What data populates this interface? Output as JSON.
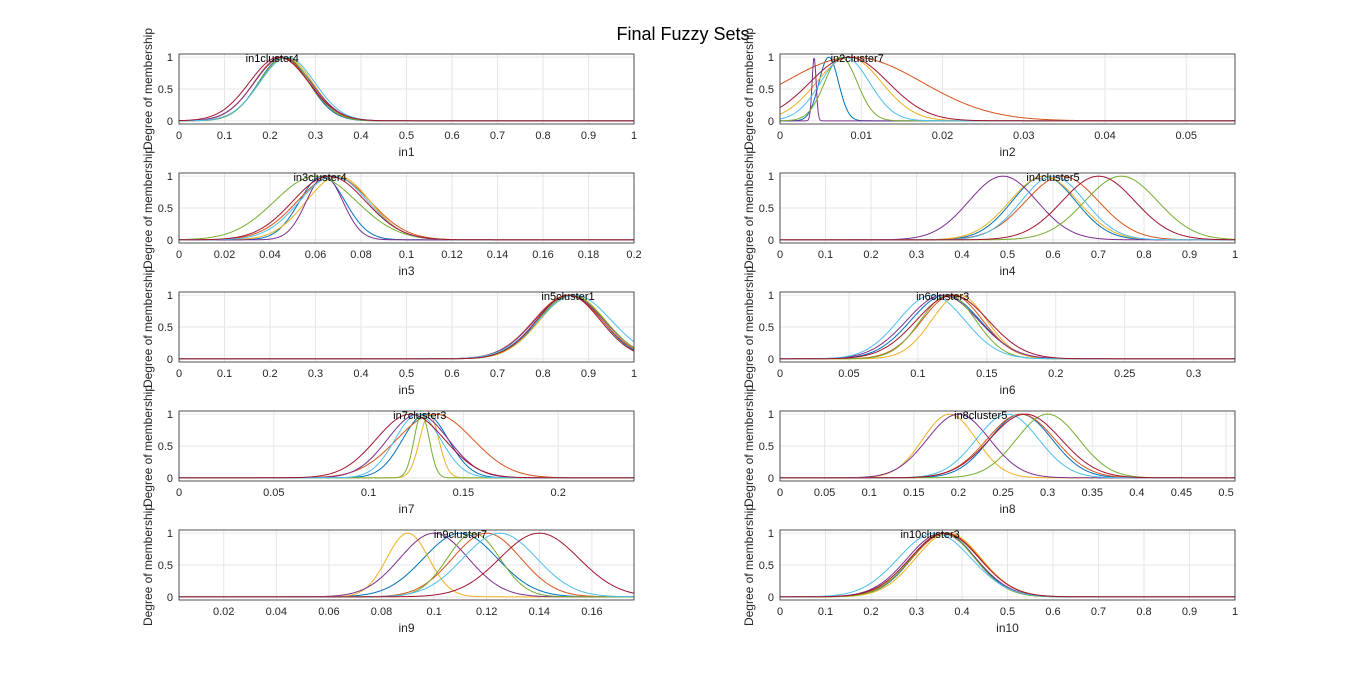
{
  "figure": {
    "title": "Final Fuzzy Sets"
  },
  "chart_data": [
    {
      "type": "line",
      "xlabel": "in1",
      "ylabel": "Degree of membership",
      "xlim": [
        0,
        1
      ],
      "ylim": [
        -0.05,
        1.05
      ],
      "xticks": [
        "0",
        "0.1",
        "0.2",
        "0.3",
        "0.4",
        "0.5",
        "0.6",
        "0.7",
        "0.8",
        "0.9",
        "1"
      ],
      "yticks": [
        "0",
        "0.5",
        "1"
      ],
      "grid": true,
      "label_text": "in1cluster4",
      "label_x": 0.205,
      "series": [
        {
          "c": 0.23,
          "s": 0.055,
          "color": "#0072BD"
        },
        {
          "c": 0.225,
          "s": 0.06,
          "color": "#D95319"
        },
        {
          "c": 0.235,
          "s": 0.058,
          "color": "#EDB120"
        },
        {
          "c": 0.228,
          "s": 0.062,
          "color": "#7E2F8E"
        },
        {
          "c": 0.232,
          "s": 0.056,
          "color": "#77AC30"
        },
        {
          "c": 0.238,
          "s": 0.06,
          "color": "#4DBEEE"
        },
        {
          "c": 0.22,
          "s": 0.065,
          "color": "#A2142F"
        }
      ]
    },
    {
      "type": "line",
      "xlabel": "in2",
      "ylabel": "Degree of membership",
      "xlim": [
        0,
        0.056
      ],
      "ylim": [
        -0.05,
        1.05
      ],
      "xticks": [
        "0",
        "0.01",
        "0.02",
        "0.03",
        "0.04",
        "0.05"
      ],
      "yticks": [
        "0",
        "0.5",
        "1"
      ],
      "grid": true,
      "label_text": "in2cluster7",
      "label_x": 0.0095,
      "series": [
        {
          "c": 0.006,
          "s": 0.0012,
          "color": "#0072BD"
        },
        {
          "c": 0.009,
          "s": 0.0085,
          "color": "#D95319"
        },
        {
          "c": 0.0085,
          "s": 0.004,
          "color": "#EDB120"
        },
        {
          "c": 0.0042,
          "s": 0.00025,
          "color": "#7E2F8E"
        },
        {
          "c": 0.0075,
          "s": 0.002,
          "color": "#77AC30"
        },
        {
          "c": 0.008,
          "s": 0.003,
          "color": "#4DBEEE"
        },
        {
          "c": 0.0085,
          "s": 0.0048,
          "color": "#A2142F"
        }
      ]
    },
    {
      "type": "line",
      "xlabel": "in3",
      "ylabel": "Degree of membership",
      "xlim": [
        0,
        0.2
      ],
      "ylim": [
        -0.05,
        1.05
      ],
      "xticks": [
        "0",
        "0.02",
        "0.04",
        "0.06",
        "0.08",
        "0.1",
        "0.12",
        "0.14",
        "0.16",
        "0.18",
        "0.2"
      ],
      "yticks": [
        "0",
        "0.5",
        "1"
      ],
      "grid": true,
      "label_text": "in3cluster4",
      "label_x": 0.062,
      "series": [
        {
          "c": 0.063,
          "s": 0.01,
          "color": "#0072BD"
        },
        {
          "c": 0.068,
          "s": 0.016,
          "color": "#D95319"
        },
        {
          "c": 0.07,
          "s": 0.014,
          "color": "#EDB120"
        },
        {
          "c": 0.064,
          "s": 0.008,
          "color": "#7E2F8E"
        },
        {
          "c": 0.06,
          "s": 0.018,
          "color": "#77AC30"
        },
        {
          "c": 0.068,
          "s": 0.015,
          "color": "#4DBEEE"
        },
        {
          "c": 0.066,
          "s": 0.016,
          "color": "#A2142F"
        }
      ]
    },
    {
      "type": "line",
      "xlabel": "in4",
      "ylabel": "Degree of membership",
      "xlim": [
        0,
        1
      ],
      "ylim": [
        -0.05,
        1.05
      ],
      "xticks": [
        "0",
        "0.1",
        "0.2",
        "0.3",
        "0.4",
        "0.5",
        "0.6",
        "0.7",
        "0.8",
        "0.9",
        "1"
      ],
      "yticks": [
        "0",
        "0.5",
        "1"
      ],
      "grid": true,
      "label_text": "in4cluster5",
      "label_x": 0.6,
      "series": [
        {
          "c": 0.58,
          "s": 0.07,
          "color": "#0072BD"
        },
        {
          "c": 0.62,
          "s": 0.08,
          "color": "#D95319"
        },
        {
          "c": 0.58,
          "s": 0.075,
          "color": "#EDB120"
        },
        {
          "c": 0.49,
          "s": 0.075,
          "color": "#7E2F8E"
        },
        {
          "c": 0.75,
          "s": 0.08,
          "color": "#77AC30"
        },
        {
          "c": 0.6,
          "s": 0.07,
          "color": "#4DBEEE"
        },
        {
          "c": 0.7,
          "s": 0.08,
          "color": "#A2142F"
        }
      ]
    },
    {
      "type": "line",
      "xlabel": "in5",
      "ylabel": "Degree of membership",
      "xlim": [
        0,
        1
      ],
      "ylim": [
        -0.05,
        1.05
      ],
      "xticks": [
        "0",
        "0.1",
        "0.2",
        "0.3",
        "0.4",
        "0.5",
        "0.6",
        "0.7",
        "0.8",
        "0.9",
        "1"
      ],
      "yticks": [
        "0",
        "0.5",
        "1"
      ],
      "grid": true,
      "label_text": "in5cluster1",
      "label_x": 0.855,
      "series": [
        {
          "c": 0.86,
          "s": 0.07,
          "color": "#0072BD"
        },
        {
          "c": 0.855,
          "s": 0.075,
          "color": "#D95319"
        },
        {
          "c": 0.865,
          "s": 0.072,
          "color": "#EDB120"
        },
        {
          "c": 0.858,
          "s": 0.076,
          "color": "#7E2F8E"
        },
        {
          "c": 0.862,
          "s": 0.074,
          "color": "#77AC30"
        },
        {
          "c": 0.87,
          "s": 0.08,
          "color": "#4DBEEE"
        },
        {
          "c": 0.856,
          "s": 0.07,
          "color": "#A2142F"
        }
      ]
    },
    {
      "type": "line",
      "xlabel": "in6",
      "ylabel": "Degree of membership",
      "xlim": [
        0,
        0.33
      ],
      "ylim": [
        -0.05,
        1.05
      ],
      "xticks": [
        "0",
        "0.05",
        "0.1",
        "0.15",
        "0.2",
        "0.25",
        "0.3"
      ],
      "yticks": [
        "0",
        "0.5",
        "1"
      ],
      "grid": true,
      "label_text": "in6cluster3",
      "label_x": 0.118,
      "series": [
        {
          "c": 0.12,
          "s": 0.025,
          "color": "#0072BD"
        },
        {
          "c": 0.125,
          "s": 0.022,
          "color": "#D95319"
        },
        {
          "c": 0.13,
          "s": 0.02,
          "color": "#EDB120"
        },
        {
          "c": 0.118,
          "s": 0.026,
          "color": "#7E2F8E"
        },
        {
          "c": 0.122,
          "s": 0.02,
          "color": "#77AC30"
        },
        {
          "c": 0.11,
          "s": 0.024,
          "color": "#4DBEEE"
        },
        {
          "c": 0.125,
          "s": 0.026,
          "color": "#A2142F"
        }
      ]
    },
    {
      "type": "line",
      "xlabel": "in7",
      "ylabel": "Degree of membership",
      "xlim": [
        0,
        0.24
      ],
      "ylim": [
        -0.05,
        1.05
      ],
      "xticks": [
        "0",
        "0.05",
        "0.1",
        "0.15",
        "0.2"
      ],
      "yticks": [
        "0",
        "0.5",
        "1"
      ],
      "grid": true,
      "label_text": "in7cluster3",
      "label_x": 0.127,
      "series": [
        {
          "c": 0.13,
          "s": 0.012,
          "color": "#0072BD"
        },
        {
          "c": 0.135,
          "s": 0.02,
          "color": "#D95319"
        },
        {
          "c": 0.132,
          "s": 0.005,
          "color": "#EDB120"
        },
        {
          "c": 0.126,
          "s": 0.016,
          "color": "#7E2F8E"
        },
        {
          "c": 0.128,
          "s": 0.004,
          "color": "#77AC30"
        },
        {
          "c": 0.126,
          "s": 0.012,
          "color": "#4DBEEE"
        },
        {
          "c": 0.122,
          "s": 0.018,
          "color": "#A2142F"
        }
      ]
    },
    {
      "type": "line",
      "xlabel": "in8",
      "ylabel": "Degree of membership",
      "xlim": [
        0,
        0.51
      ],
      "ylim": [
        -0.05,
        1.05
      ],
      "xticks": [
        "0",
        "0.05",
        "0.1",
        "0.15",
        "0.2",
        "0.25",
        "0.3",
        "0.35",
        "0.4",
        "0.45",
        "0.5"
      ],
      "yticks": [
        "0",
        "0.5",
        "1"
      ],
      "grid": true,
      "label_text": "in8cluster5",
      "label_x": 0.225,
      "series": [
        {
          "c": 0.27,
          "s": 0.035,
          "color": "#0072BD"
        },
        {
          "c": 0.27,
          "s": 0.038,
          "color": "#D95319"
        },
        {
          "c": 0.19,
          "s": 0.03,
          "color": "#EDB120"
        },
        {
          "c": 0.2,
          "s": 0.035,
          "color": "#7E2F8E"
        },
        {
          "c": 0.3,
          "s": 0.035,
          "color": "#77AC30"
        },
        {
          "c": 0.255,
          "s": 0.035,
          "color": "#4DBEEE"
        },
        {
          "c": 0.275,
          "s": 0.04,
          "color": "#A2142F"
        }
      ]
    },
    {
      "type": "line",
      "xlabel": "in9",
      "ylabel": "Degree of membership",
      "xlim": [
        0.003,
        0.176
      ],
      "ylim": [
        -0.05,
        1.05
      ],
      "xticks": [
        "0.02",
        "0.04",
        "0.06",
        "0.08",
        "0.1",
        "0.12",
        "0.14",
        "0.16"
      ],
      "yticks": [
        "0",
        "0.5",
        "1"
      ],
      "grid": true,
      "label_text": "in9cluster7",
      "label_x": 0.11,
      "series": [
        {
          "c": 0.11,
          "s": 0.014,
          "color": "#0072BD"
        },
        {
          "c": 0.12,
          "s": 0.013,
          "color": "#D95319"
        },
        {
          "c": 0.09,
          "s": 0.008,
          "color": "#EDB120"
        },
        {
          "c": 0.1,
          "s": 0.013,
          "color": "#7E2F8E"
        },
        {
          "c": 0.115,
          "s": 0.01,
          "color": "#77AC30"
        },
        {
          "c": 0.125,
          "s": 0.014,
          "color": "#4DBEEE"
        },
        {
          "c": 0.14,
          "s": 0.015,
          "color": "#A2142F"
        }
      ]
    },
    {
      "type": "line",
      "xlabel": "in10",
      "ylabel": "Degree of membership",
      "xlim": [
        0,
        1
      ],
      "ylim": [
        -0.05,
        1.05
      ],
      "xticks": [
        "0",
        "0.1",
        "0.2",
        "0.3",
        "0.4",
        "0.5",
        "0.6",
        "0.7",
        "0.8",
        "0.9",
        "1"
      ],
      "yticks": [
        "0",
        "0.5",
        "1"
      ],
      "grid": true,
      "label_text": "in10cluster3",
      "label_x": 0.33,
      "series": [
        {
          "c": 0.36,
          "s": 0.07,
          "color": "#0072BD"
        },
        {
          "c": 0.365,
          "s": 0.075,
          "color": "#D95319"
        },
        {
          "c": 0.37,
          "s": 0.072,
          "color": "#EDB120"
        },
        {
          "c": 0.355,
          "s": 0.075,
          "color": "#7E2F8E"
        },
        {
          "c": 0.358,
          "s": 0.07,
          "color": "#77AC30"
        },
        {
          "c": 0.34,
          "s": 0.08,
          "color": "#4DBEEE"
        },
        {
          "c": 0.362,
          "s": 0.076,
          "color": "#A2142F"
        }
      ]
    }
  ]
}
